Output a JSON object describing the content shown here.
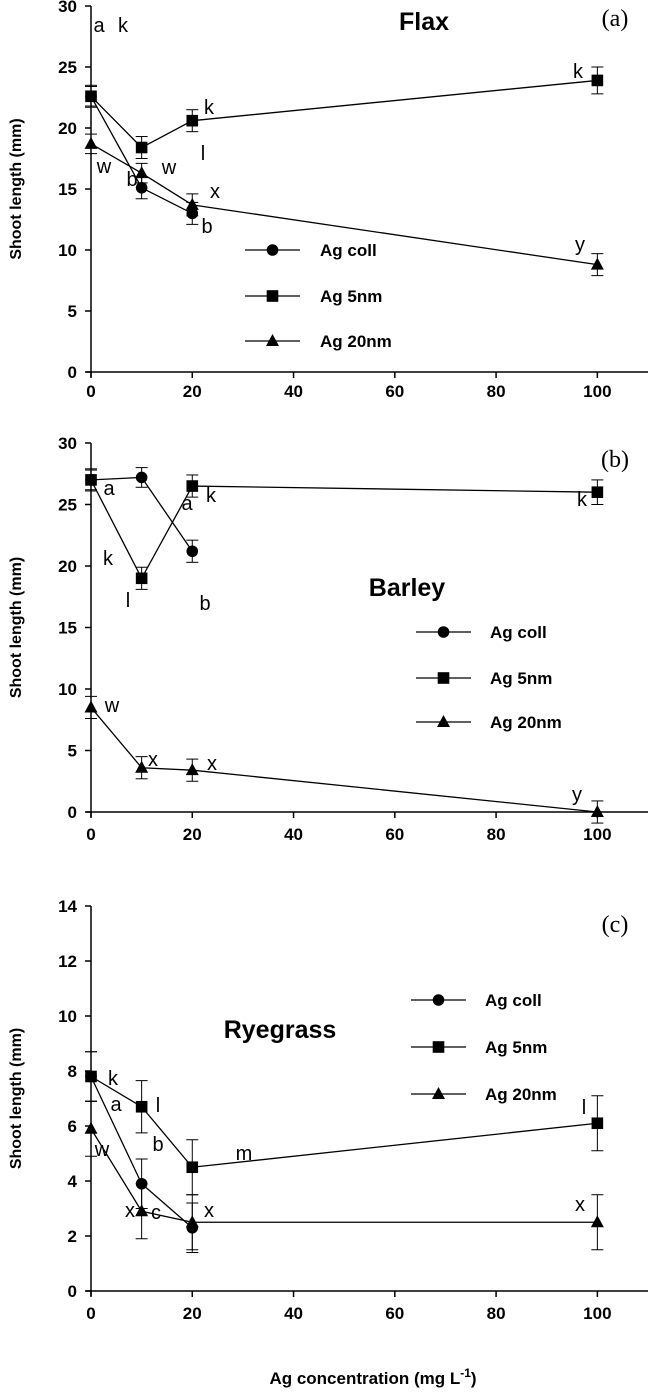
{
  "x_axis_label": "Ag concentration  (mg L",
  "x_axis_label_sup": "-1",
  "x_axis_label_close": ")",
  "chart_data": [
    {
      "type": "line",
      "panel": "(a)",
      "title": "Flax",
      "ylabel": "Shoot length (mm)",
      "xlim": [
        0,
        110
      ],
      "ylim": [
        0,
        30
      ],
      "xticks": [
        0,
        20,
        40,
        60,
        80,
        100
      ],
      "yticks": [
        0,
        5,
        10,
        15,
        20,
        25,
        30
      ],
      "legend": {
        "position": "center",
        "entries": [
          "Ag coll",
          "Ag 5nm",
          "Ag 20nm"
        ]
      },
      "series": [
        {
          "name": "Ag coll",
          "marker": "circle",
          "x": [
            0,
            10,
            20
          ],
          "values": [
            22.6,
            15.1,
            13.0
          ],
          "errors": [
            0.8,
            0.9,
            0.9
          ],
          "letters": [
            "a",
            "b",
            "b"
          ]
        },
        {
          "name": "Ag 5nm",
          "marker": "square",
          "x": [
            0,
            10,
            20,
            100
          ],
          "values": [
            22.6,
            18.4,
            20.6,
            23.9
          ],
          "errors": [
            0.9,
            0.9,
            0.9,
            1.1
          ],
          "letters": [
            "k",
            "l",
            "k",
            "k"
          ]
        },
        {
          "name": "Ag 20nm",
          "marker": "triangle",
          "x": [
            0,
            10,
            20,
            100
          ],
          "values": [
            18.7,
            16.3,
            13.7,
            8.8
          ],
          "errors": [
            0.8,
            0.8,
            0.9,
            0.9
          ],
          "letters": [
            "w",
            "w",
            "x",
            "y"
          ]
        }
      ]
    },
    {
      "type": "line",
      "panel": "(b)",
      "title": "Barley",
      "ylabel": "Shoot length (mm)",
      "xlim": [
        0,
        110
      ],
      "ylim": [
        0,
        30
      ],
      "xticks": [
        0,
        20,
        40,
        60,
        80,
        100
      ],
      "yticks": [
        0,
        5,
        10,
        15,
        20,
        25,
        30
      ],
      "legend": {
        "position": "center-right",
        "entries": [
          "Ag coll",
          "Ag 5nm",
          "Ag 20nm"
        ]
      },
      "series": [
        {
          "name": "Ag coll",
          "marker": "circle",
          "x": [
            0,
            10,
            20
          ],
          "values": [
            27.0,
            27.2,
            21.2
          ],
          "errors": [
            0.8,
            0.8,
            0.9
          ],
          "letters": [
            "a",
            "a",
            "b"
          ]
        },
        {
          "name": "Ag 5nm",
          "marker": "square",
          "x": [
            0,
            10,
            20,
            100
          ],
          "values": [
            27.0,
            19.0,
            26.5,
            26.0
          ],
          "errors": [
            0.9,
            0.9,
            0.9,
            1.0
          ],
          "letters": [
            "k",
            "l",
            "k",
            "k"
          ]
        },
        {
          "name": "Ag 20nm",
          "marker": "triangle",
          "x": [
            0,
            10,
            20,
            100
          ],
          "values": [
            8.5,
            3.6,
            3.4,
            0.0
          ],
          "errors": [
            0.9,
            0.9,
            0.9,
            0.9
          ],
          "letters": [
            "w",
            "x",
            "x",
            "y"
          ]
        }
      ]
    },
    {
      "type": "line",
      "panel": "(c)",
      "title": "Ryegrass",
      "ylabel": "Shoot length (mm)",
      "xlim": [
        0,
        110
      ],
      "ylim": [
        0,
        14
      ],
      "xticks": [
        0,
        20,
        40,
        60,
        80,
        100
      ],
      "yticks": [
        0,
        2,
        4,
        6,
        8,
        10,
        12,
        14
      ],
      "legend": {
        "position": "center-right",
        "entries": [
          "Ag coll",
          "Ag 5nm",
          "Ag 20nm"
        ]
      },
      "series": [
        {
          "name": "Ag coll",
          "marker": "circle",
          "x": [
            0,
            10,
            20
          ],
          "values": [
            7.8,
            3.9,
            2.3
          ],
          "errors": [
            0.9,
            0.9,
            0.9
          ],
          "letters": [
            "a",
            "b",
            "c"
          ]
        },
        {
          "name": "Ag 5nm",
          "marker": "square",
          "x": [
            0,
            10,
            20,
            100
          ],
          "values": [
            7.8,
            6.7,
            4.5,
            6.1
          ],
          "errors": [
            0.9,
            0.95,
            1.0,
            1.0
          ],
          "letters": [
            "k",
            "l",
            "m",
            "l"
          ]
        },
        {
          "name": "Ag 20nm",
          "marker": "triangle",
          "x": [
            0,
            10,
            20,
            100
          ],
          "values": [
            5.9,
            2.9,
            2.5,
            2.5
          ],
          "errors": [
            1.0,
            1.0,
            1.0,
            1.0
          ],
          "letters": [
            "w",
            "x",
            "x",
            "x"
          ]
        }
      ]
    }
  ]
}
